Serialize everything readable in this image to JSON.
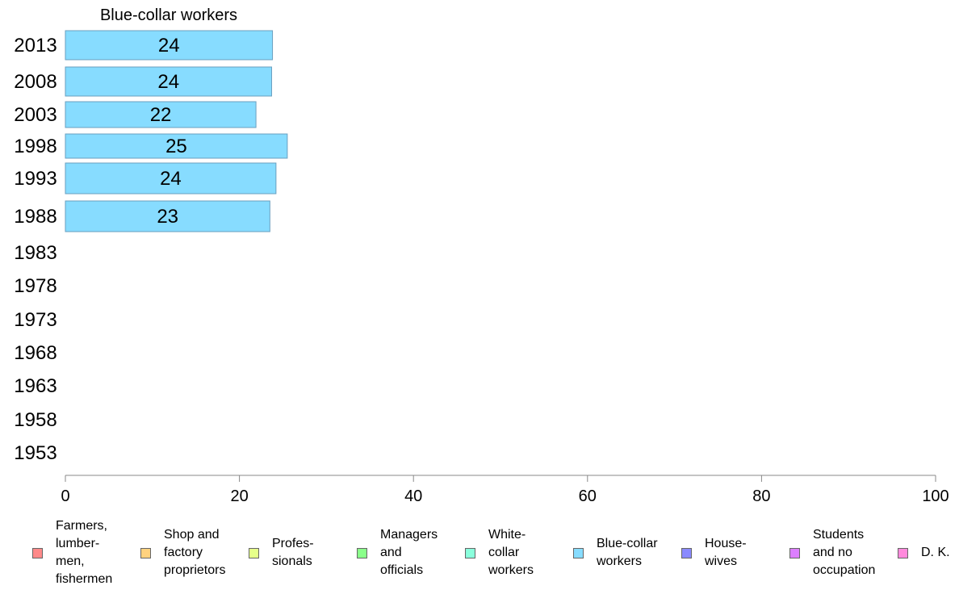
{
  "chart_data": {
    "type": "bar",
    "orientation": "horizontal",
    "title": "Blue-collar workers",
    "categories": [
      "2013",
      "2008",
      "2003",
      "1998",
      "1993",
      "1988",
      "1983",
      "1978",
      "1973",
      "1968",
      "1963",
      "1958",
      "1953"
    ],
    "series": [
      {
        "name": "Blue-collar workers",
        "color": "#87dcff",
        "values": [
          23.8,
          23.7,
          21.9,
          25.5,
          24.2,
          23.5,
          null,
          null,
          null,
          null,
          null,
          null,
          null
        ],
        "labels": [
          "24",
          "24",
          "22",
          "25",
          "24",
          "23",
          "",
          "",
          "",
          "",
          "",
          "",
          ""
        ]
      }
    ],
    "xlim": [
      0,
      100
    ],
    "xticks": [
      "0",
      "20",
      "40",
      "60",
      "80",
      "100"
    ],
    "xlabel": "",
    "ylabel": "",
    "grid": false,
    "legend_position": "bottom"
  },
  "legend": [
    {
      "label": "Farmers,\nlumber-\nmen,\nfishermen",
      "color": "#ff8a8a"
    },
    {
      "label": "Shop and\nfactory\nproprietors",
      "color": "#ffd27f"
    },
    {
      "label": "Profes-\nsionals",
      "color": "#e6ff8a"
    },
    {
      "label": "Managers\nand\nofficials",
      "color": "#8aff8a"
    },
    {
      "label": "White-\ncollar\nworkers",
      "color": "#8affdc"
    },
    {
      "label": "Blue-collar\nworkers",
      "color": "#87dcff"
    },
    {
      "label": "House-\nwives",
      "color": "#8a8aff"
    },
    {
      "label": "Students\nand no\noccupation",
      "color": "#dc7fff"
    },
    {
      "label": "D. K.",
      "color": "#ff8adc"
    }
  ]
}
